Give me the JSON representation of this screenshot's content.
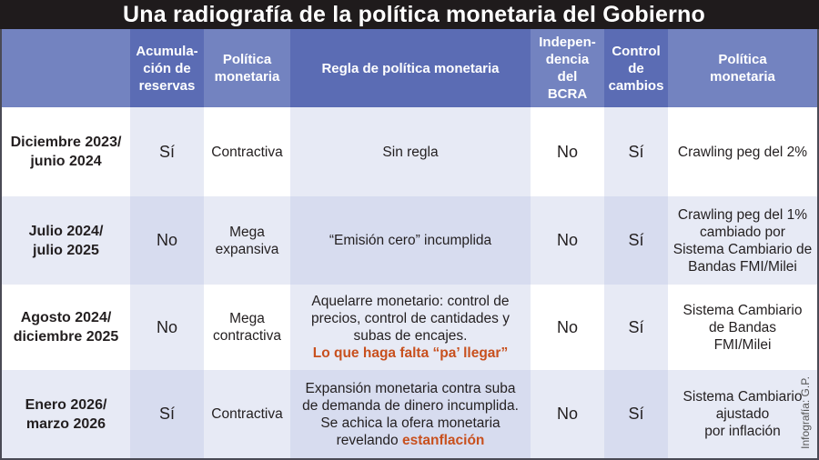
{
  "title": "Una radiografía de la política monetaria del Gobierno",
  "colors": {
    "title_bg": "#1f1b1c",
    "header_light": "#7383c0",
    "header_dark": "#5b6cb4",
    "highlight": "#c8501e"
  },
  "headers": [
    "",
    "Acumula-\nción de\nreservas",
    "Política\nmonetaria",
    "Regla de política monetaria",
    "Indepen-\ndencia del\nBCRA",
    "Control\nde\ncambios",
    "Política\nmonetaria"
  ],
  "rows": [
    {
      "period": "Diciembre 2023/\njunio 2024",
      "reservas": "Sí",
      "politica": "Contractiva",
      "regla": "Sin regla",
      "regla_highlight": "",
      "independencia": "No",
      "control": "Sí",
      "cambiaria": "Crawling peg del 2%"
    },
    {
      "period": "Julio 2024/\njulio 2025",
      "reservas": "No",
      "politica": "Mega\nexpansiva",
      "regla": "“Emisión cero” incumplida",
      "regla_highlight": "",
      "independencia": "No",
      "control": "Sí",
      "cambiaria": "Crawling peg del 1%\ncambiado por\nSistema Cambiario de\nBandas FMI/Milei"
    },
    {
      "period": "Agosto 2024/\ndiciembre 2025",
      "reservas": "No",
      "politica": "Mega\ncontractiva",
      "regla": "Aquelarre monetario: control de\nprecios, control de cantidades y\nsubas de encajes.\n",
      "regla_highlight": "Lo que haga falta “pa’ llegar”",
      "independencia": "No",
      "control": "Sí",
      "cambiaria": "Sistema Cambiario\nde Bandas\nFMI/Milei"
    },
    {
      "period": "Enero 2026/\nmarzo 2026",
      "reservas": "Sí",
      "politica": "Contractiva",
      "regla": "Expansión monetaria contra suba\nde demanda de dinero incumplida.\nSe achica la ofera monetaria\nrevelando ",
      "regla_highlight": "estanflación",
      "independencia": "No",
      "control": "Sí",
      "cambiaria": "Sistema Cambiario\najustado\npor inflación"
    }
  ],
  "credit": "Infografía: G.P."
}
